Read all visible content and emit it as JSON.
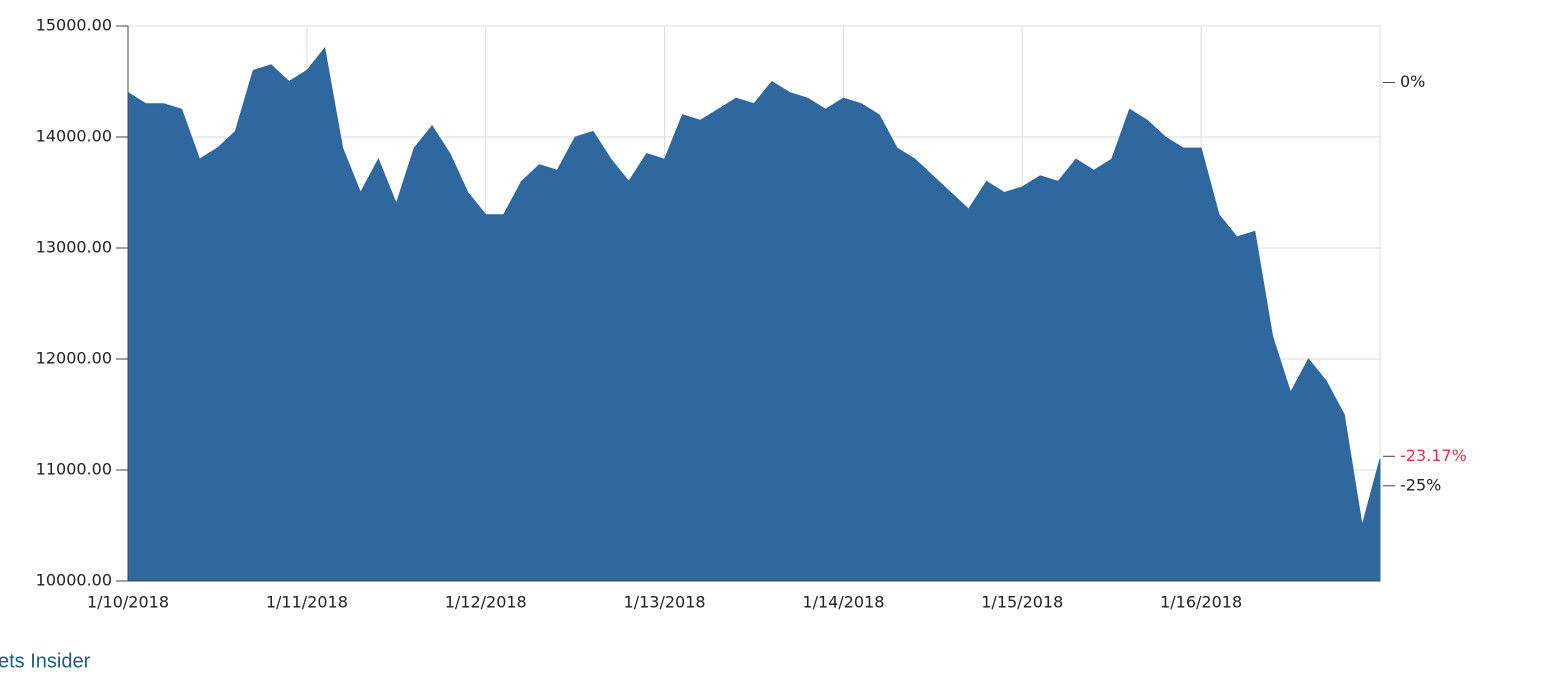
{
  "chart_data": {
    "type": "area",
    "categories": [
      "1/10/2018",
      null,
      null,
      null,
      null,
      null,
      null,
      null,
      null,
      null,
      "1/11/2018",
      null,
      null,
      null,
      null,
      null,
      null,
      null,
      null,
      null,
      "1/12/2018",
      null,
      null,
      null,
      null,
      null,
      null,
      null,
      null,
      null,
      "1/13/2018",
      null,
      null,
      null,
      null,
      null,
      null,
      null,
      null,
      null,
      "1/14/2018",
      null,
      null,
      null,
      null,
      null,
      null,
      null,
      null,
      null,
      "1/15/2018",
      null,
      null,
      null,
      null,
      null,
      null,
      null,
      null,
      null,
      "1/16/2018",
      null,
      null,
      null,
      null,
      null,
      null,
      null,
      null,
      null,
      null
    ],
    "values": [
      14400,
      14300,
      14300,
      14250,
      13800,
      13900,
      14050,
      14600,
      14650,
      14500,
      14600,
      14800,
      13900,
      13500,
      13800,
      13400,
      13900,
      14100,
      13850,
      13500,
      13300,
      13300,
      13600,
      13750,
      13700,
      14000,
      14050,
      13800,
      13600,
      13850,
      13800,
      14200,
      14150,
      14250,
      14350,
      14300,
      14500,
      14400,
      14350,
      14250,
      14350,
      14300,
      14200,
      13900,
      13800,
      13650,
      13500,
      13350,
      13600,
      13500,
      13550,
      13650,
      13600,
      13800,
      13700,
      13800,
      14250,
      14150,
      14000,
      13900,
      13900,
      13300,
      13100,
      13150,
      12200,
      11700,
      12000,
      11800,
      11500,
      10500,
      11100
    ],
    "color": "#2f679f",
    "ylim": [
      10000,
      15000
    ],
    "yticks": [
      {
        "value": 10000,
        "label": "10000.00"
      },
      {
        "value": 11000,
        "label": "11000.00"
      },
      {
        "value": 12000,
        "label": "12000.00"
      },
      {
        "value": 13000,
        "label": "13000.00"
      },
      {
        "value": 14000,
        "label": "14000.00"
      },
      {
        "value": 15000,
        "label": "15000.00"
      }
    ],
    "y2lim": [
      -30.9,
      3.5
    ],
    "y2ticks": [
      {
        "value": 0,
        "label": "0%"
      },
      {
        "value": -25,
        "label": "-25%"
      }
    ],
    "annotation": {
      "value": -23.17,
      "label": "-23.17%",
      "color": "#e0314b"
    },
    "grid": true,
    "source": "ets Insider"
  }
}
